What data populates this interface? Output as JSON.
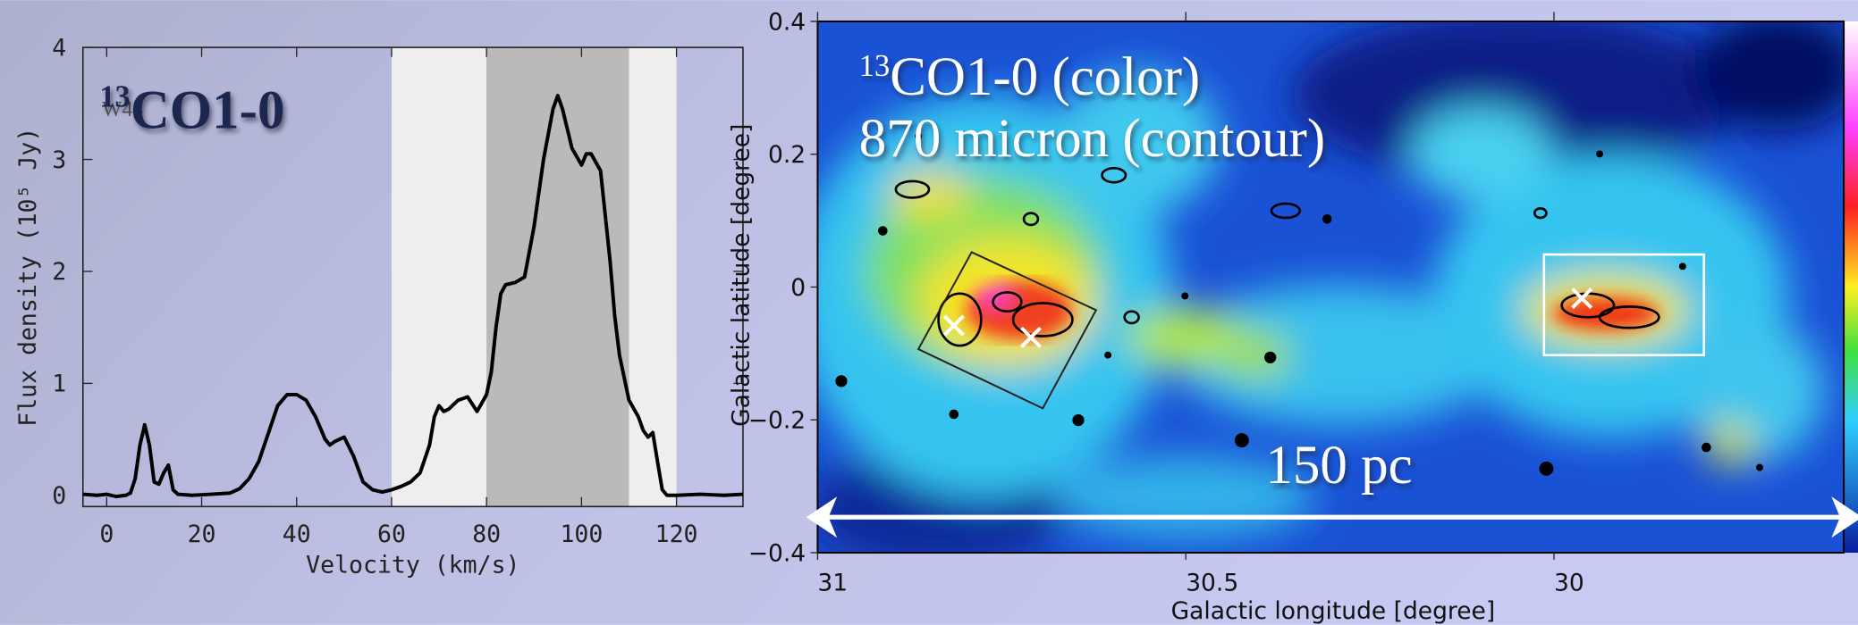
{
  "chart_data": [
    {
      "type": "line",
      "label_sup": "13",
      "label": "CO1-0",
      "label_under": "W43",
      "xlabel": "Velocity (km/s)",
      "ylabel": "Flux density (10⁵ Jy)",
      "xlim": [
        -5,
        134
      ],
      "xticks": [
        0,
        20,
        40,
        60,
        80,
        100,
        120
      ],
      "ylim": [
        -0.1,
        4
      ],
      "yticks": [
        0,
        1,
        2,
        3,
        4
      ],
      "color": "#000000",
      "bands": [
        {
          "from": 60,
          "to": 80,
          "color": "#eeeeee"
        },
        {
          "from": 80,
          "to": 110,
          "color": "#bababa"
        },
        {
          "from": 110,
          "to": 120,
          "color": "#eeeeee"
        }
      ],
      "x": [
        -5,
        -2,
        0,
        2,
        4,
        5,
        6,
        7,
        8,
        9,
        10,
        11,
        12,
        13,
        14,
        15,
        18,
        22,
        26,
        28,
        30,
        32,
        34,
        36,
        38,
        40,
        42,
        44,
        46,
        47,
        48,
        50,
        52,
        54,
        56,
        58,
        60,
        62,
        64,
        66,
        68,
        69,
        70,
        71,
        72,
        74,
        76,
        78,
        80,
        81,
        82,
        83,
        84,
        86,
        88,
        90,
        92,
        94,
        95,
        96,
        98,
        100,
        101,
        102,
        104,
        105,
        106,
        107,
        108,
        110,
        112,
        113,
        114,
        115,
        116,
        117,
        118,
        120,
        125,
        130,
        134
      ],
      "values": [
        0.01,
        0,
        0.01,
        -0.01,
        0,
        0.02,
        0.15,
        0.45,
        0.63,
        0.45,
        0.12,
        0.1,
        0.2,
        0.27,
        0.05,
        0.01,
        0,
        0.01,
        0.02,
        0.06,
        0.15,
        0.3,
        0.55,
        0.8,
        0.9,
        0.9,
        0.85,
        0.7,
        0.5,
        0.45,
        0.48,
        0.52,
        0.35,
        0.12,
        0.05,
        0.03,
        0.05,
        0.08,
        0.12,
        0.2,
        0.45,
        0.7,
        0.8,
        0.75,
        0.77,
        0.85,
        0.88,
        0.75,
        0.9,
        1.1,
        1.5,
        1.8,
        1.88,
        1.9,
        1.95,
        2.4,
        3.0,
        3.45,
        3.57,
        3.45,
        3.1,
        2.95,
        3.05,
        3.05,
        2.9,
        2.5,
        2.1,
        1.6,
        1.25,
        0.85,
        0.7,
        0.58,
        0.52,
        0.56,
        0.3,
        0.05,
        0,
        0,
        0.01,
        0,
        0.01
      ]
    },
    {
      "type": "image",
      "title_sup": "13",
      "title": "CO1-0 (color)",
      "subtitle": "870 micron (contour)",
      "scale_label": "150 pc",
      "xlabel": "Galactic longitude [degree]",
      "ylabel": "Galactic latitude [degree]",
      "xlim": [
        31,
        29.6
      ],
      "xticks": [
        31,
        30.5,
        30
      ],
      "ylim": [
        -0.4,
        0.4
      ],
      "yticks": [
        {
          "value": -0.4,
          "label": "−0.4"
        },
        {
          "value": -0.2,
          "label": "−0.2"
        },
        0,
        0.2,
        0.4
      ]
    }
  ]
}
